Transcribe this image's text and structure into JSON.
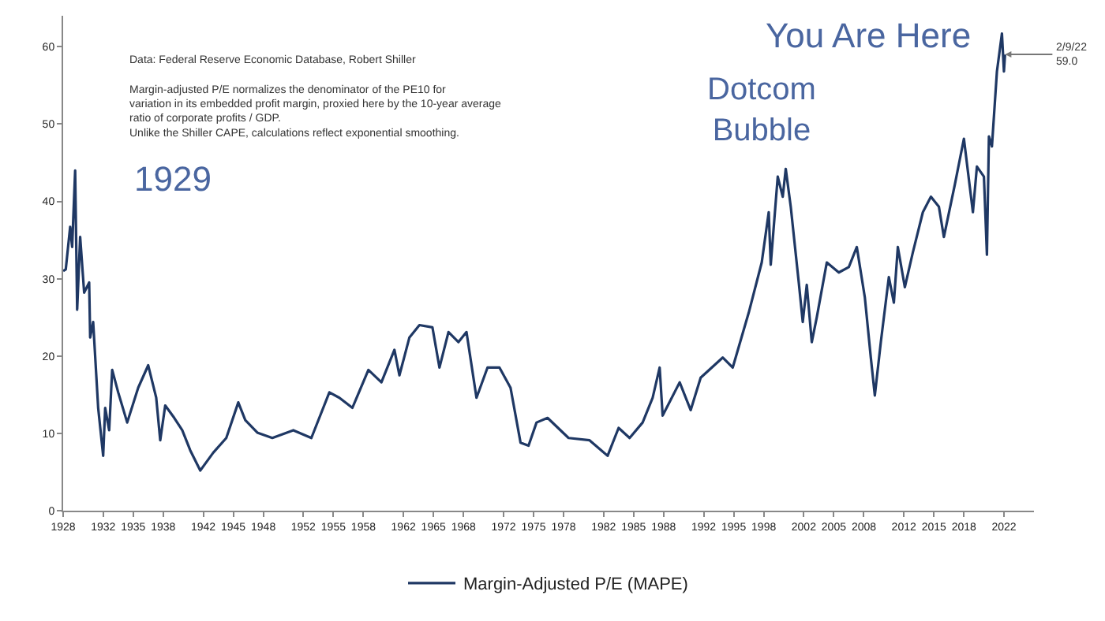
{
  "chart_data": {
    "type": "line",
    "x": [
      1928.0,
      1928.26,
      1928.7,
      1928.9,
      1929.2,
      1929.4,
      1929.7,
      1930.1,
      1930.6,
      1930.7,
      1931.0,
      1931.5,
      1932.0,
      1932.2,
      1932.6,
      1932.9,
      1933.5,
      1934.4,
      1935.5,
      1936.5,
      1937.3,
      1937.7,
      1938.2,
      1939.1,
      1939.9,
      1940.7,
      1941.7,
      1943.0,
      1944.3,
      1945.5,
      1946.2,
      1947.4,
      1948.9,
      1951.0,
      1952.8,
      1954.6,
      1955.6,
      1956.9,
      1958.5,
      1959.8,
      1961.1,
      1961.6,
      1962.6,
      1963.6,
      1964.9,
      1965.6,
      1966.5,
      1967.5,
      1968.3,
      1969.3,
      1970.4,
      1971.6,
      1972.7,
      1973.7,
      1974.5,
      1975.3,
      1976.4,
      1978.5,
      1980.6,
      1982.4,
      1983.5,
      1984.6,
      1985.9,
      1986.9,
      1987.6,
      1987.9,
      1989.6,
      1990.7,
      1991.7,
      1993.9,
      1994.9,
      1996.5,
      1997.8,
      1998.5,
      1998.7,
      1999.4,
      1999.9,
      2000.2,
      2000.7,
      2001.5,
      2001.9,
      2002.3,
      2002.8,
      2003.3,
      2004.3,
      2005.5,
      2006.5,
      2007.3,
      2008.1,
      2008.7,
      2009.1,
      2009.7,
      2010.5,
      2011.0,
      2011.4,
      2012.1,
      2012.9,
      2013.9,
      2014.7,
      2015.5,
      2016.0,
      2017.1,
      2018.0,
      2018.9,
      2019.3,
      2020.0,
      2020.3,
      2020.5,
      2020.8,
      2021.3,
      2021.8,
      2022.0,
      2022.11
    ],
    "series": [
      {
        "name": "Margin-Adjusted P/E (MAPE)",
        "color": "#1f3864",
        "values": [
          31,
          31.2,
          36.7,
          34.1,
          44,
          26,
          35.4,
          28.2,
          29.5,
          22.4,
          24.4,
          13.3,
          7.1,
          13.3,
          10.4,
          18.2,
          15.3,
          11.4,
          15.9,
          18.8,
          14.6,
          9.1,
          13.6,
          12,
          10.4,
          7.8,
          5.2,
          7.5,
          9.4,
          14,
          11.7,
          10.1,
          9.4,
          10.4,
          9.4,
          15.3,
          14.6,
          13.3,
          18.2,
          16.6,
          20.8,
          17.5,
          22.4,
          24,
          23.7,
          18.5,
          23.1,
          21.8,
          23.1,
          14.6,
          18.5,
          18.5,
          15.9,
          8.8,
          8.4,
          11.4,
          12,
          9.4,
          9.1,
          7.1,
          10.7,
          9.4,
          11.4,
          14.6,
          18.5,
          12.3,
          16.6,
          13,
          17.2,
          19.8,
          18.5,
          25.6,
          32.1,
          38.6,
          31.8,
          43.2,
          40.6,
          44.2,
          39.3,
          29.5,
          24.4,
          29.2,
          21.8,
          25,
          32.1,
          30.8,
          31.5,
          34.1,
          27.6,
          19.8,
          14.9,
          21.8,
          30.2,
          26.9,
          34.1,
          28.9,
          33.4,
          38.6,
          40.6,
          39.3,
          35.4,
          42.2,
          48.1,
          38.6,
          44.5,
          43.2,
          33.1,
          48.4,
          47.1,
          56.8,
          61.7,
          56.8,
          59.0
        ]
      }
    ],
    "xlim": [
      1928,
      2025
    ],
    "xticks": [
      1928,
      1932,
      1935,
      1938,
      1942,
      1945,
      1948,
      1952,
      1955,
      1958,
      1962,
      1965,
      1968,
      1972,
      1975,
      1978,
      1982,
      1985,
      1988,
      1992,
      1995,
      1998,
      2002,
      2005,
      2008,
      2012,
      2015,
      2018,
      2022
    ],
    "ylim": [
      0,
      64
    ],
    "yticks": [
      0,
      10,
      20,
      30,
      40,
      50,
      60
    ],
    "legend": "bottom",
    "marker": "none",
    "line_style": "solid",
    "annotations": [
      "Data: Federal Reserve Economic Database, Robert Shiller",
      "Margin-adjusted P/E normalizes the denominator of the PE10 for\nvariation in its embedded profit margin, proxied here by the 10-year average\nratio of corporate profits / GDP.\nUnlike the Shiller CAPE, calculations reflect exponential smoothing.",
      "1929",
      "Dotcom\nBubble",
      "You Are Here",
      {
        "text": "2/9/22\n59.0",
        "x": 2022.11,
        "y": 59.0
      }
    ]
  }
}
